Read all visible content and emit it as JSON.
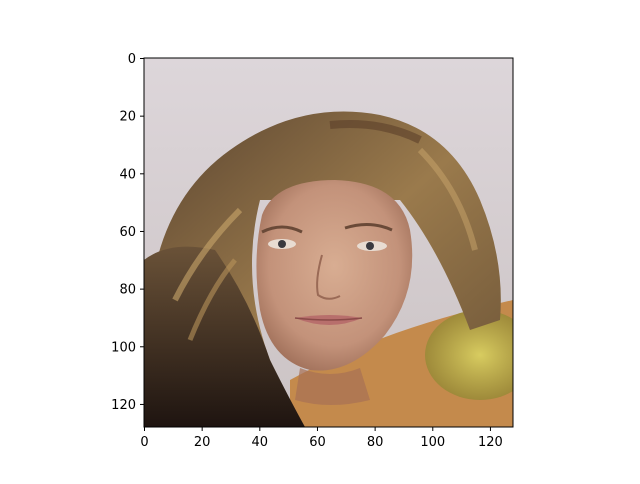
{
  "figure": {
    "image_alt": "Generated portrait of a woman with long wavy brown hair",
    "x_ticks": [
      "0",
      "20",
      "40",
      "60",
      "80",
      "100",
      "120"
    ],
    "y_ticks": [
      "0",
      "20",
      "40",
      "60",
      "80",
      "100",
      "120"
    ]
  },
  "colors": {
    "background_top": "#d8d1d6",
    "background_bottom": "#c9c1c2",
    "hair_dark": "#3a2a1c",
    "hair_mid": "#8a6a40",
    "hair_light": "#c9a66b",
    "skin": "#c99a7e",
    "skin_shadow": "#a8765c",
    "lips": "#b06a6a",
    "yellow_blob": "#b8a030",
    "shoulder": "#c88a4a"
  }
}
